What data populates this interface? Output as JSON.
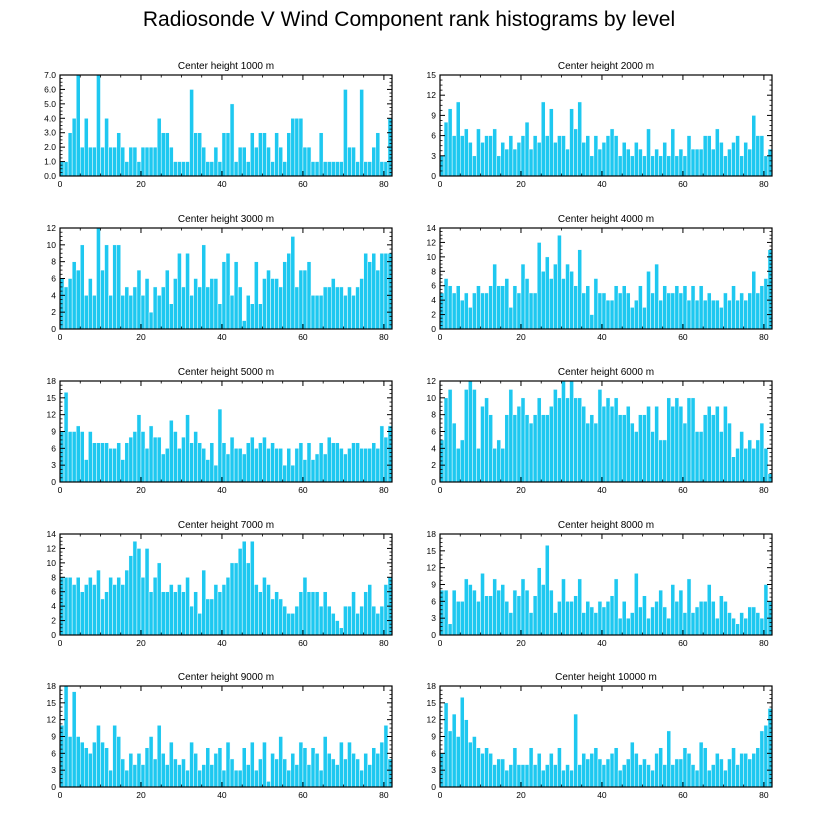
{
  "title": "Radiosonde V Wind Component rank histograms by level",
  "colors": {
    "bar": "#1ec8f0",
    "axis": "#000000",
    "background": "#ffffff"
  },
  "chart_data": [
    {
      "type": "bar",
      "title": "Center height 1000 m",
      "x_start": 0,
      "xlim": [
        0,
        82
      ],
      "ylim": [
        0,
        7
      ],
      "xticks": [
        0,
        20,
        40,
        60,
        80
      ],
      "xtick_labels": [
        "0",
        "20",
        "40",
        "60",
        "80"
      ],
      "yticks": [
        0,
        1,
        2,
        3,
        4,
        5,
        6,
        7
      ],
      "ytick_labels": [
        "0.0",
        "1.0",
        "2.0",
        "3.0",
        "4.0",
        "5.0",
        "6.0",
        "7.0"
      ],
      "values": [
        1,
        1,
        3,
        4,
        7,
        2,
        4,
        2,
        2,
        7,
        2,
        4,
        2,
        2,
        3,
        2,
        1,
        2,
        2,
        1,
        2,
        2,
        2,
        2,
        4,
        3,
        3,
        2,
        1,
        1,
        1,
        1,
        6,
        3,
        3,
        2,
        1,
        1,
        2,
        1,
        3,
        3,
        5,
        1,
        2,
        2,
        1,
        3,
        2,
        3,
        3,
        2,
        1,
        3,
        2,
        1,
        3,
        4,
        4,
        4,
        2,
        2,
        1,
        1,
        3,
        1,
        1,
        1,
        1,
        1,
        6,
        2,
        2,
        1,
        6,
        1,
        1,
        2,
        3,
        1,
        1,
        4
      ]
    },
    {
      "type": "bar",
      "title": "Center height 2000 m",
      "x_start": 0,
      "xlim": [
        0,
        82
      ],
      "ylim": [
        0,
        15
      ],
      "xticks": [
        0,
        20,
        40,
        60,
        80
      ],
      "xtick_labels": [
        "0",
        "20",
        "40",
        "60",
        "80"
      ],
      "yticks": [
        0,
        3,
        6,
        9,
        12,
        15
      ],
      "ytick_labels": [
        "0",
        "3",
        "6",
        "9",
        "12",
        "15"
      ],
      "values": [
        3,
        8,
        10,
        6,
        11,
        6,
        7,
        5,
        3,
        7,
        5,
        6,
        6,
        7,
        3,
        5,
        4,
        6,
        4,
        5,
        6,
        8,
        4,
        6,
        5,
        11,
        6,
        10,
        5,
        6,
        6,
        4,
        10,
        7,
        11,
        5,
        6,
        3,
        6,
        4,
        5,
        6,
        7,
        6,
        3,
        5,
        4,
        3,
        5,
        4,
        3,
        7,
        3,
        4,
        3,
        5,
        3,
        7,
        3,
        4,
        3,
        6,
        4,
        4,
        4,
        6,
        6,
        4,
        7,
        5,
        3,
        4,
        5,
        6,
        3,
        5,
        4,
        9,
        6,
        6,
        3,
        4
      ]
    },
    {
      "type": "bar",
      "title": "Center height 3000 m",
      "x_start": 0,
      "xlim": [
        0,
        82
      ],
      "ylim": [
        0,
        12
      ],
      "xticks": [
        0,
        20,
        40,
        60,
        80
      ],
      "xtick_labels": [
        "0",
        "20",
        "40",
        "60",
        "80"
      ],
      "yticks": [
        0,
        2,
        4,
        6,
        8,
        10,
        12
      ],
      "ytick_labels": [
        "0",
        "2",
        "4",
        "6",
        "8",
        "10",
        "12"
      ],
      "values": [
        6,
        5,
        6,
        8,
        7,
        10,
        4,
        6,
        4,
        12,
        7,
        10,
        4,
        10,
        10,
        4,
        5,
        4,
        5,
        7,
        4,
        6,
        2,
        5,
        4,
        5,
        7,
        3,
        6,
        9,
        5,
        9,
        4,
        6,
        5,
        10,
        5,
        6,
        6,
        3,
        8,
        9,
        4,
        8,
        5,
        1,
        4,
        3,
        8,
        3,
        6,
        7,
        6,
        6,
        5,
        8,
        9,
        11,
        5,
        7,
        7,
        8,
        4,
        4,
        4,
        5,
        5,
        6,
        5,
        5,
        4,
        5,
        4,
        5,
        6,
        9,
        8,
        9,
        7,
        9,
        9,
        9
      ]
    },
    {
      "type": "bar",
      "title": "Center height 4000 m",
      "x_start": 0,
      "xlim": [
        0,
        82
      ],
      "ylim": [
        0,
        14
      ],
      "xticks": [
        0,
        20,
        40,
        60,
        80
      ],
      "xtick_labels": [
        "0",
        "20",
        "40",
        "60",
        "80"
      ],
      "yticks": [
        0,
        2,
        4,
        6,
        8,
        10,
        12,
        14
      ],
      "ytick_labels": [
        "0",
        "2",
        "4",
        "6",
        "8",
        "10",
        "12",
        "14"
      ],
      "values": [
        5,
        7,
        6,
        5,
        6,
        4,
        5,
        3,
        5,
        6,
        5,
        5,
        6,
        9,
        6,
        6,
        7,
        3,
        6,
        5,
        9,
        7,
        5,
        5,
        12,
        8,
        10,
        7,
        9,
        13,
        7,
        9,
        8,
        6,
        11,
        5,
        6,
        2,
        7,
        5,
        5,
        4,
        4,
        6,
        5,
        6,
        5,
        3,
        4,
        6,
        3,
        8,
        5,
        9,
        4,
        6,
        5,
        5,
        6,
        5,
        6,
        4,
        6,
        4,
        6,
        4,
        5,
        4,
        4,
        3,
        5,
        4,
        6,
        4,
        5,
        4,
        5,
        8,
        5,
        6,
        7,
        11
      ]
    },
    {
      "type": "bar",
      "title": "Center height 5000 m",
      "x_start": 0,
      "xlim": [
        0,
        82
      ],
      "ylim": [
        0,
        18
      ],
      "xticks": [
        0,
        20,
        40,
        60,
        80
      ],
      "xtick_labels": [
        "0",
        "20",
        "40",
        "60",
        "80"
      ],
      "yticks": [
        0,
        3,
        6,
        9,
        12,
        15,
        18
      ],
      "ytick_labels": [
        "0",
        "3",
        "6",
        "9",
        "12",
        "15",
        "18"
      ],
      "values": [
        9,
        16,
        9,
        9,
        10,
        9,
        4,
        9,
        7,
        7,
        7,
        7,
        6,
        6,
        7,
        4,
        7,
        8,
        9,
        12,
        9,
        6,
        10,
        8,
        8,
        5,
        6,
        11,
        9,
        6,
        8,
        12,
        7,
        9,
        7,
        6,
        4,
        7,
        3,
        13,
        7,
        5,
        8,
        6,
        6,
        5,
        7,
        8,
        6,
        7,
        8,
        6,
        7,
        6,
        6,
        3,
        6,
        3,
        6,
        7,
        4,
        7,
        4,
        5,
        7,
        5,
        8,
        7,
        7,
        6,
        5,
        6,
        7,
        7,
        6,
        6,
        6,
        7,
        6,
        10,
        8,
        10
      ]
    },
    {
      "type": "bar",
      "title": "Center height 6000 m",
      "x_start": 0,
      "xlim": [
        0,
        82
      ],
      "ylim": [
        0,
        12
      ],
      "xticks": [
        0,
        20,
        40,
        60,
        80
      ],
      "xtick_labels": [
        "0",
        "20",
        "40",
        "60",
        "80"
      ],
      "yticks": [
        0,
        2,
        4,
        6,
        8,
        10,
        12
      ],
      "ytick_labels": [
        "0",
        "2",
        "4",
        "6",
        "8",
        "10",
        "12"
      ],
      "values": [
        5,
        10,
        11,
        7,
        4,
        5,
        11,
        12,
        11,
        4,
        9,
        10,
        8,
        4,
        5,
        4,
        8,
        11,
        8,
        9,
        10,
        8,
        7,
        8,
        10,
        8,
        8,
        9,
        11,
        10,
        12,
        10,
        12,
        10,
        10,
        9,
        7,
        8,
        7,
        11,
        9,
        10,
        9,
        10,
        8,
        8,
        9,
        7,
        6,
        8,
        8,
        9,
        6,
        9,
        5,
        5,
        10,
        9,
        10,
        9,
        7,
        10,
        10,
        6,
        6,
        8,
        9,
        8,
        9,
        6,
        9,
        7,
        3,
        4,
        6,
        4,
        5,
        4,
        5,
        7,
        4,
        1
      ]
    },
    {
      "type": "bar",
      "title": "Center height 7000 m",
      "x_start": 0,
      "xlim": [
        0,
        82
      ],
      "ylim": [
        0,
        14
      ],
      "xticks": [
        0,
        20,
        40,
        60,
        80
      ],
      "xtick_labels": [
        "0",
        "20",
        "40",
        "60",
        "80"
      ],
      "yticks": [
        0,
        2,
        4,
        6,
        8,
        10,
        12,
        14
      ],
      "ytick_labels": [
        "0",
        "2",
        "4",
        "6",
        "8",
        "10",
        "12",
        "14"
      ],
      "values": [
        8,
        8,
        8,
        7,
        8,
        6,
        7,
        8,
        7,
        9,
        5,
        6,
        8,
        7,
        8,
        7,
        9,
        11,
        13,
        12,
        8,
        12,
        6,
        8,
        10,
        6,
        6,
        7,
        6,
        7,
        6,
        8,
        4,
        6,
        3,
        9,
        5,
        5,
        7,
        6,
        7,
        8,
        10,
        10,
        12,
        13,
        10,
        13,
        7,
        6,
        8,
        7,
        5,
        6,
        5,
        4,
        3,
        3,
        4,
        6,
        8,
        6,
        6,
        6,
        4,
        6,
        4,
        3,
        2,
        1,
        4,
        4,
        6,
        3,
        4,
        6,
        7,
        4,
        3,
        4,
        7,
        8
      ]
    },
    {
      "type": "bar",
      "title": "Center height 8000 m",
      "x_start": 0,
      "xlim": [
        0,
        82
      ],
      "ylim": [
        0,
        18
      ],
      "xticks": [
        0,
        20,
        40,
        60,
        80
      ],
      "xtick_labels": [
        "0",
        "20",
        "40",
        "60",
        "80"
      ],
      "yticks": [
        0,
        3,
        6,
        9,
        12,
        15,
        18
      ],
      "ytick_labels": [
        "0",
        "3",
        "6",
        "9",
        "12",
        "15",
        "18"
      ],
      "values": [
        8,
        8,
        2,
        8,
        6,
        6,
        10,
        9,
        8,
        6,
        11,
        7,
        7,
        10,
        8,
        9,
        6,
        4,
        8,
        7,
        10,
        8,
        4,
        7,
        12,
        9,
        16,
        8,
        4,
        6,
        10,
        6,
        6,
        7,
        10,
        4,
        6,
        5,
        4,
        6,
        5,
        6,
        7,
        10,
        3,
        6,
        3,
        4,
        11,
        5,
        7,
        3,
        5,
        6,
        8,
        5,
        3,
        9,
        6,
        8,
        4,
        10,
        4,
        5,
        6,
        6,
        9,
        6,
        3,
        7,
        6,
        4,
        3,
        2,
        4,
        3,
        5,
        5,
        4,
        3,
        9,
        6
      ]
    },
    {
      "type": "bar",
      "title": "Center height 9000 m",
      "x_start": 0,
      "xlim": [
        0,
        82
      ],
      "ylim": [
        0,
        18
      ],
      "xticks": [
        0,
        20,
        40,
        60,
        80
      ],
      "xtick_labels": [
        "0",
        "20",
        "40",
        "60",
        "80"
      ],
      "yticks": [
        0,
        3,
        6,
        9,
        12,
        15,
        18
      ],
      "ytick_labels": [
        "0",
        "3",
        "6",
        "9",
        "12",
        "15",
        "18"
      ],
      "values": [
        11,
        18,
        9,
        17,
        9,
        8,
        7,
        6,
        8,
        11,
        8,
        7,
        3,
        11,
        9,
        5,
        3,
        6,
        4,
        6,
        4,
        7,
        9,
        5,
        11,
        6,
        4,
        8,
        5,
        4,
        5,
        3,
        8,
        6,
        3,
        4,
        7,
        4,
        6,
        7,
        3,
        8,
        5,
        3,
        3,
        7,
        4,
        8,
        3,
        5,
        8,
        1,
        6,
        5,
        9,
        5,
        3,
        6,
        4,
        8,
        7,
        4,
        7,
        6,
        3,
        9,
        6,
        5,
        4,
        8,
        5,
        8,
        6,
        5,
        3,
        6,
        4,
        7,
        6,
        8,
        11,
        5
      ]
    },
    {
      "type": "bar",
      "title": "Center height 10000 m",
      "x_start": 0,
      "xlim": [
        0,
        82
      ],
      "ylim": [
        0,
        18
      ],
      "xticks": [
        0,
        20,
        40,
        60,
        80
      ],
      "xtick_labels": [
        "0",
        "20",
        "40",
        "60",
        "80"
      ],
      "yticks": [
        0,
        3,
        6,
        9,
        12,
        15,
        18
      ],
      "ytick_labels": [
        "0",
        "3",
        "6",
        "9",
        "12",
        "15",
        "18"
      ],
      "values": [
        6,
        15,
        10,
        13,
        9,
        16,
        12,
        8,
        9,
        7,
        6,
        7,
        6,
        4,
        5,
        5,
        3,
        4,
        7,
        4,
        4,
        4,
        7,
        4,
        6,
        3,
        4,
        6,
        4,
        7,
        3,
        4,
        3,
        13,
        4,
        6,
        5,
        6,
        7,
        5,
        4,
        5,
        6,
        7,
        3,
        4,
        5,
        8,
        6,
        4,
        5,
        4,
        3,
        6,
        7,
        4,
        10,
        4,
        5,
        5,
        7,
        6,
        4,
        3,
        8,
        7,
        3,
        4,
        6,
        5,
        3,
        5,
        7,
        4,
        6,
        6,
        5,
        6,
        7,
        10,
        11,
        14
      ]
    }
  ]
}
